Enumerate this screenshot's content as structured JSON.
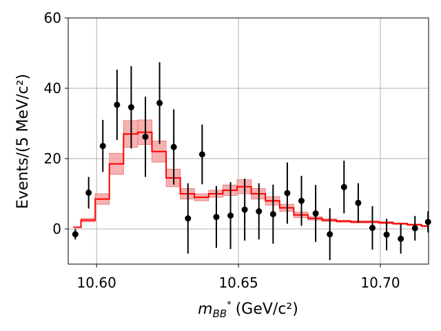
{
  "chart_data": {
    "type": "histogram-with-data-points",
    "title": "",
    "xlabel": "m_{BB*} (GeV/c²)",
    "xlabel_main": "m",
    "xlabel_sub": "BB",
    "xlabel_sup": "*",
    "xlabel_units": "(GeV/c²)",
    "ylabel": "Events/(5 MeV/c²)",
    "xlim": [
      10.59,
      10.717
    ],
    "ylim": [
      -10,
      60
    ],
    "x_ticks": [
      10.6,
      10.65,
      10.7
    ],
    "x_tick_labels": [
      "10.60",
      "10.65",
      "10.70"
    ],
    "y_ticks": [
      0,
      20,
      40,
      60
    ],
    "y_tick_labels": [
      "0",
      "20",
      "40",
      "60"
    ],
    "grid": true,
    "colors": {
      "fit": "#ff0000",
      "band": "#f4a3a3",
      "data": "#000000",
      "grid": "#b0b0b0"
    },
    "fit_bins": {
      "edges": [
        10.5918,
        10.5945,
        10.5995,
        10.6045,
        10.6095,
        10.6145,
        10.6195,
        10.6245,
        10.6295,
        10.6345,
        10.6395,
        10.6445,
        10.6495,
        10.6545,
        10.6595,
        10.6645,
        10.6695,
        10.6745,
        10.6795,
        10.6845,
        10.6895,
        10.6945,
        10.6995,
        10.7045,
        10.7095,
        10.7145,
        10.717
      ],
      "values": [
        0.5,
        2.5,
        8.5,
        18.5,
        27.0,
        27.5,
        22.0,
        14.5,
        10.0,
        9.0,
        10.0,
        11.0,
        12.0,
        10.0,
        8.0,
        6.0,
        4.0,
        3.0,
        2.5,
        2.2,
        2.0,
        2.0,
        1.8,
        1.5,
        1.2,
        0.8
      ],
      "errors": [
        0.0,
        0.5,
        1.5,
        3.0,
        3.8,
        3.5,
        3.0,
        2.5,
        1.5,
        1.0,
        1.0,
        1.5,
        2.0,
        1.5,
        1.2,
        1.0,
        0.8,
        0.5,
        0.4,
        0.3,
        0.3,
        0.3,
        0.3,
        0.2,
        0.2,
        0.2
      ]
    },
    "data_points": [
      {
        "x": 10.5925,
        "y": -1.5,
        "err": 1.5
      },
      {
        "x": 10.5972,
        "y": 10.3,
        "err": 4.5
      },
      {
        "x": 10.6022,
        "y": 23.6,
        "err": 7.4
      },
      {
        "x": 10.6072,
        "y": 35.3,
        "err": 10.0
      },
      {
        "x": 10.6122,
        "y": 34.6,
        "err": 11.7
      },
      {
        "x": 10.6172,
        "y": 26.2,
        "err": 11.4
      },
      {
        "x": 10.6222,
        "y": 35.8,
        "err": 11.6
      },
      {
        "x": 10.6272,
        "y": 23.3,
        "err": 10.7
      },
      {
        "x": 10.6322,
        "y": 3.0,
        "err": 10.0
      },
      {
        "x": 10.6372,
        "y": 21.2,
        "err": 8.5
      },
      {
        "x": 10.6422,
        "y": 3.4,
        "err": 8.8
      },
      {
        "x": 10.6472,
        "y": 3.8,
        "err": 9.5
      },
      {
        "x": 10.6522,
        "y": 5.5,
        "err": 8.8
      },
      {
        "x": 10.6572,
        "y": 5.0,
        "err": 8.0
      },
      {
        "x": 10.6622,
        "y": 4.2,
        "err": 8.4
      },
      {
        "x": 10.6672,
        "y": 10.2,
        "err": 8.7
      },
      {
        "x": 10.6722,
        "y": 8.0,
        "err": 7.1
      },
      {
        "x": 10.6772,
        "y": 4.4,
        "err": 8.1
      },
      {
        "x": 10.6822,
        "y": -1.5,
        "err": 7.4
      },
      {
        "x": 10.6872,
        "y": 11.9,
        "err": 7.5
      },
      {
        "x": 10.6922,
        "y": 7.4,
        "err": 5.6
      },
      {
        "x": 10.6972,
        "y": 0.3,
        "err": 6.2
      },
      {
        "x": 10.7022,
        "y": -1.6,
        "err": 4.5
      },
      {
        "x": 10.7072,
        "y": -2.8,
        "err": 4.2
      },
      {
        "x": 10.7122,
        "y": 0.2,
        "err": 3.5
      },
      {
        "x": 10.7168,
        "y": 2.0,
        "err": 3.0
      }
    ]
  }
}
